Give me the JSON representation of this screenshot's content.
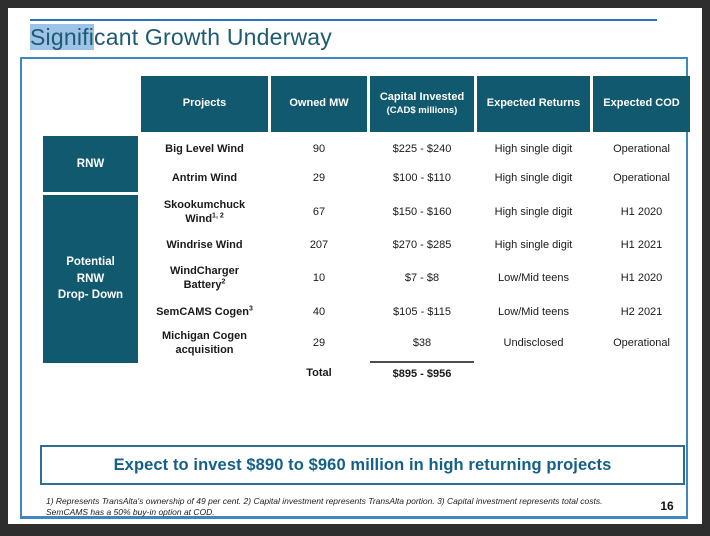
{
  "slide": {
    "title_highlight": "Signifi",
    "title_rest": "cant Growth Underway",
    "callout": "Expect to invest $890 to $960 million in high returning projects",
    "footnote": "1) Represents TransAlta's ownership of 49 per cent. 2) Capital investment represents TransAlta portion. 3) Capital investment represents total costs. SemCAMS has a 50% buy-in option at COD.",
    "page_number": "16"
  },
  "colors": {
    "header_teal": "#11596e",
    "title_text": "#1e5a72",
    "selection_highlight": "#9dc3e6",
    "frame_border_blue": "#3f87c1",
    "top_rule_blue": "#2e74b5",
    "callout_text": "#14608a",
    "callout_border": "#2e6e93"
  },
  "table": {
    "headers": [
      {
        "label": "Projects",
        "sub": ""
      },
      {
        "label": "Owned MW",
        "sub": ""
      },
      {
        "label": "Capital Invested",
        "sub": "(CAD$ millions)"
      },
      {
        "label": "Expected Returns",
        "sub": ""
      },
      {
        "label": "Expected COD",
        "sub": ""
      }
    ],
    "groups": [
      {
        "lines": [
          "RNW",
          "",
          ""
        ]
      },
      {
        "lines": [
          "Potential",
          "RNW",
          "Drop- Down"
        ]
      }
    ],
    "rows": [
      {
        "p1": "Big Level Wind",
        "p1sup": "",
        "p2": "",
        "p2sup": "",
        "mw": "90",
        "capital": "$225 - $240",
        "returns": "High single digit",
        "cod": "Operational"
      },
      {
        "p1": "Antrim Wind",
        "p1sup": "",
        "p2": "",
        "p2sup": "",
        "mw": "29",
        "capital": "$100 - $110",
        "returns": "High single digit",
        "cod": "Operational"
      },
      {
        "p1": "Skookumchuck",
        "p1sup": "",
        "p2": "Wind",
        "p2sup": "1, 2",
        "mw": "67",
        "capital": "$150 - $160",
        "returns": "High single digit",
        "cod": "H1 2020"
      },
      {
        "p1": "Windrise Wind",
        "p1sup": "",
        "p2": "",
        "p2sup": "",
        "mw": "207",
        "capital": "$270 - $285",
        "returns": "High single digit",
        "cod": "H1 2021"
      },
      {
        "p1": "WindCharger",
        "p1sup": "",
        "p2": "Battery",
        "p2sup": "2",
        "mw": "10",
        "capital": "$7 - $8",
        "returns": "Low/Mid teens",
        "cod": "H1 2020"
      },
      {
        "p1": "SemCAMS Cogen",
        "p1sup": "3",
        "p2": "",
        "p2sup": "",
        "mw": "40",
        "capital": "$105 - $115",
        "returns": "Low/Mid teens",
        "cod": "H2 2021"
      },
      {
        "p1": "Michigan Cogen",
        "p1sup": "",
        "p2": "acquisition",
        "p2sup": "",
        "mw": "29",
        "capital": "$38",
        "returns": "Undisclosed",
        "cod": "Operational"
      }
    ],
    "total": {
      "label": "Total",
      "value": "$895 - $956"
    }
  }
}
